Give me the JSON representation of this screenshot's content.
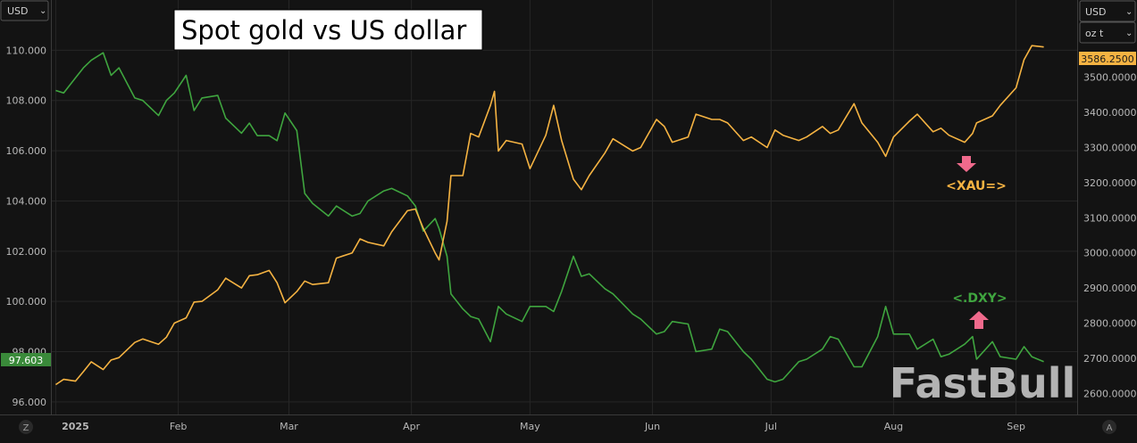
{
  "chart_data": {
    "type": "line",
    "title": "Spot gold vs US dollar",
    "left_axis": {
      "currency": "USD",
      "range": [
        95.5,
        112
      ],
      "ticks": [
        "110.000",
        "108.000",
        "106.000",
        "104.000",
        "102.000",
        "100.000",
        "98.000",
        "96.000"
      ]
    },
    "right_axis": {
      "currency": "USD",
      "unit": "oz t",
      "range": [
        2540,
        3720
      ],
      "ticks": [
        "3500.0000",
        "3400.0000",
        "3300.0000",
        "3200.0000",
        "3100.0000",
        "3000.0000",
        "2900.0000",
        "2800.0000",
        "2700.0000",
        "2600.0000"
      ]
    },
    "x_axis": {
      "range": [
        "2024-12-31",
        "2025-09-09"
      ],
      "ticks": [
        {
          "label": "2025",
          "date": "2025-01-01"
        },
        {
          "label": "Feb",
          "date": "2025-02-01"
        },
        {
          "label": "Mar",
          "date": "2025-03-01"
        },
        {
          "label": "Apr",
          "date": "2025-04-01"
        },
        {
          "label": "May",
          "date": "2025-05-01"
        },
        {
          "label": "Jun",
          "date": "2025-06-01"
        },
        {
          "label": "Jul",
          "date": "2025-07-01"
        },
        {
          "label": "Aug",
          "date": "2025-08-01"
        },
        {
          "label": "Sep",
          "date": "2025-09-01"
        }
      ]
    },
    "grid": true,
    "series": [
      {
        "name": "<.DXY>",
        "axis": "left",
        "color": "#3fa53f",
        "last_value_label": "97.603",
        "points": [
          [
            "2025-01-01",
            108.4
          ],
          [
            "2025-01-03",
            108.3
          ],
          [
            "2025-01-06",
            108.9
          ],
          [
            "2025-01-08",
            109.3
          ],
          [
            "2025-01-10",
            109.6
          ],
          [
            "2025-01-13",
            109.9
          ],
          [
            "2025-01-15",
            109.0
          ],
          [
            "2025-01-17",
            109.3
          ],
          [
            "2025-01-21",
            108.1
          ],
          [
            "2025-01-23",
            108.0
          ],
          [
            "2025-01-27",
            107.4
          ],
          [
            "2025-01-29",
            108.0
          ],
          [
            "2025-01-31",
            108.3
          ],
          [
            "2025-02-03",
            109.0
          ],
          [
            "2025-02-05",
            107.6
          ],
          [
            "2025-02-07",
            108.1
          ],
          [
            "2025-02-11",
            108.2
          ],
          [
            "2025-02-13",
            107.3
          ],
          [
            "2025-02-17",
            106.7
          ],
          [
            "2025-02-19",
            107.1
          ],
          [
            "2025-02-21",
            106.6
          ],
          [
            "2025-02-24",
            106.6
          ],
          [
            "2025-02-26",
            106.4
          ],
          [
            "2025-02-28",
            107.5
          ],
          [
            "2025-03-03",
            106.8
          ],
          [
            "2025-03-05",
            104.3
          ],
          [
            "2025-03-07",
            103.9
          ],
          [
            "2025-03-11",
            103.4
          ],
          [
            "2025-03-13",
            103.8
          ],
          [
            "2025-03-17",
            103.4
          ],
          [
            "2025-03-19",
            103.5
          ],
          [
            "2025-03-21",
            104.0
          ],
          [
            "2025-03-25",
            104.4
          ],
          [
            "2025-03-27",
            104.5
          ],
          [
            "2025-03-31",
            104.2
          ],
          [
            "2025-04-02",
            103.8
          ],
          [
            "2025-04-04",
            102.8
          ],
          [
            "2025-04-07",
            103.3
          ],
          [
            "2025-04-08",
            102.9
          ],
          [
            "2025-04-10",
            101.8
          ],
          [
            "2025-04-11",
            100.3
          ],
          [
            "2025-04-14",
            99.7
          ],
          [
            "2025-04-16",
            99.4
          ],
          [
            "2025-04-18",
            99.3
          ],
          [
            "2025-04-21",
            98.4
          ],
          [
            "2025-04-23",
            99.8
          ],
          [
            "2025-04-25",
            99.5
          ],
          [
            "2025-04-29",
            99.2
          ],
          [
            "2025-05-01",
            99.8
          ],
          [
            "2025-05-05",
            99.8
          ],
          [
            "2025-05-07",
            99.6
          ],
          [
            "2025-05-09",
            100.4
          ],
          [
            "2025-05-12",
            101.8
          ],
          [
            "2025-05-14",
            101.0
          ],
          [
            "2025-05-16",
            101.1
          ],
          [
            "2025-05-20",
            100.5
          ],
          [
            "2025-05-22",
            100.3
          ],
          [
            "2025-05-27",
            99.5
          ],
          [
            "2025-05-29",
            99.3
          ],
          [
            "2025-06-02",
            98.7
          ],
          [
            "2025-06-04",
            98.8
          ],
          [
            "2025-06-06",
            99.2
          ],
          [
            "2025-06-10",
            99.1
          ],
          [
            "2025-06-12",
            98.0
          ],
          [
            "2025-06-16",
            98.1
          ],
          [
            "2025-06-18",
            98.9
          ],
          [
            "2025-06-20",
            98.8
          ],
          [
            "2025-06-24",
            98.0
          ],
          [
            "2025-06-26",
            97.7
          ],
          [
            "2025-06-30",
            96.9
          ],
          [
            "2025-07-02",
            96.8
          ],
          [
            "2025-07-04",
            96.9
          ],
          [
            "2025-07-08",
            97.6
          ],
          [
            "2025-07-10",
            97.7
          ],
          [
            "2025-07-14",
            98.1
          ],
          [
            "2025-07-16",
            98.6
          ],
          [
            "2025-07-18",
            98.5
          ],
          [
            "2025-07-22",
            97.4
          ],
          [
            "2025-07-24",
            97.4
          ],
          [
            "2025-07-28",
            98.6
          ],
          [
            "2025-07-30",
            99.8
          ],
          [
            "2025-08-01",
            98.7
          ],
          [
            "2025-08-05",
            98.7
          ],
          [
            "2025-08-07",
            98.1
          ],
          [
            "2025-08-11",
            98.5
          ],
          [
            "2025-08-13",
            97.8
          ],
          [
            "2025-08-15",
            97.9
          ],
          [
            "2025-08-19",
            98.3
          ],
          [
            "2025-08-21",
            98.6
          ],
          [
            "2025-08-22",
            97.7
          ],
          [
            "2025-08-26",
            98.4
          ],
          [
            "2025-08-28",
            97.8
          ],
          [
            "2025-09-01",
            97.7
          ],
          [
            "2025-09-03",
            98.2
          ],
          [
            "2025-09-05",
            97.8
          ],
          [
            "2025-09-08",
            97.603
          ]
        ]
      },
      {
        "name": "<XAU=>",
        "axis": "right",
        "color": "#f5b342",
        "last_value_label": "3586.2500",
        "points": [
          [
            "2025-01-01",
            2625
          ],
          [
            "2025-01-03",
            2640
          ],
          [
            "2025-01-06",
            2635
          ],
          [
            "2025-01-08",
            2662
          ],
          [
            "2025-01-10",
            2690
          ],
          [
            "2025-01-13",
            2668
          ],
          [
            "2025-01-15",
            2695
          ],
          [
            "2025-01-17",
            2702
          ],
          [
            "2025-01-21",
            2745
          ],
          [
            "2025-01-23",
            2755
          ],
          [
            "2025-01-27",
            2740
          ],
          [
            "2025-01-29",
            2760
          ],
          [
            "2025-01-31",
            2800
          ],
          [
            "2025-02-03",
            2815
          ],
          [
            "2025-02-05",
            2860
          ],
          [
            "2025-02-07",
            2862
          ],
          [
            "2025-02-11",
            2895
          ],
          [
            "2025-02-13",
            2928
          ],
          [
            "2025-02-17",
            2900
          ],
          [
            "2025-02-19",
            2935
          ],
          [
            "2025-02-21",
            2938
          ],
          [
            "2025-02-24",
            2950
          ],
          [
            "2025-02-26",
            2915
          ],
          [
            "2025-02-28",
            2858
          ],
          [
            "2025-03-03",
            2890
          ],
          [
            "2025-03-05",
            2920
          ],
          [
            "2025-03-07",
            2910
          ],
          [
            "2025-03-11",
            2915
          ],
          [
            "2025-03-13",
            2985
          ],
          [
            "2025-03-17",
            3000
          ],
          [
            "2025-03-19",
            3040
          ],
          [
            "2025-03-21",
            3030
          ],
          [
            "2025-03-25",
            3020
          ],
          [
            "2025-03-27",
            3060
          ],
          [
            "2025-03-31",
            3120
          ],
          [
            "2025-04-02",
            3125
          ],
          [
            "2025-04-04",
            3070
          ],
          [
            "2025-04-07",
            3000
          ],
          [
            "2025-04-08",
            2980
          ],
          [
            "2025-04-10",
            3090
          ],
          [
            "2025-04-11",
            3220
          ],
          [
            "2025-04-14",
            3220
          ],
          [
            "2025-04-16",
            3340
          ],
          [
            "2025-04-18",
            3330
          ],
          [
            "2025-04-21",
            3420
          ],
          [
            "2025-04-22",
            3460
          ],
          [
            "2025-04-23",
            3290
          ],
          [
            "2025-04-25",
            3320
          ],
          [
            "2025-04-29",
            3310
          ],
          [
            "2025-05-01",
            3240
          ],
          [
            "2025-05-05",
            3335
          ],
          [
            "2025-05-07",
            3420
          ],
          [
            "2025-05-09",
            3320
          ],
          [
            "2025-05-12",
            3210
          ],
          [
            "2025-05-14",
            3180
          ],
          [
            "2025-05-16",
            3220
          ],
          [
            "2025-05-20",
            3285
          ],
          [
            "2025-05-22",
            3325
          ],
          [
            "2025-05-27",
            3290
          ],
          [
            "2025-05-29",
            3300
          ],
          [
            "2025-06-02",
            3380
          ],
          [
            "2025-06-04",
            3360
          ],
          [
            "2025-06-06",
            3315
          ],
          [
            "2025-06-10",
            3330
          ],
          [
            "2025-06-12",
            3395
          ],
          [
            "2025-06-16",
            3380
          ],
          [
            "2025-06-18",
            3380
          ],
          [
            "2025-06-20",
            3370
          ],
          [
            "2025-06-24",
            3320
          ],
          [
            "2025-06-26",
            3330
          ],
          [
            "2025-06-30",
            3300
          ],
          [
            "2025-07-02",
            3350
          ],
          [
            "2025-07-04",
            3335
          ],
          [
            "2025-07-08",
            3320
          ],
          [
            "2025-07-10",
            3330
          ],
          [
            "2025-07-14",
            3360
          ],
          [
            "2025-07-16",
            3340
          ],
          [
            "2025-07-18",
            3350
          ],
          [
            "2025-07-22",
            3425
          ],
          [
            "2025-07-24",
            3370
          ],
          [
            "2025-07-28",
            3315
          ],
          [
            "2025-07-30",
            3275
          ],
          [
            "2025-08-01",
            3330
          ],
          [
            "2025-08-05",
            3375
          ],
          [
            "2025-08-07",
            3395
          ],
          [
            "2025-08-11",
            3345
          ],
          [
            "2025-08-13",
            3355
          ],
          [
            "2025-08-15",
            3335
          ],
          [
            "2025-08-19",
            3315
          ],
          [
            "2025-08-21",
            3340
          ],
          [
            "2025-08-22",
            3370
          ],
          [
            "2025-08-26",
            3390
          ],
          [
            "2025-08-28",
            3420
          ],
          [
            "2025-09-01",
            3470
          ],
          [
            "2025-09-03",
            3550
          ],
          [
            "2025-09-05",
            3590
          ],
          [
            "2025-09-08",
            3586.25
          ]
        ]
      }
    ],
    "annotations": [
      {
        "text": "<XAU=>",
        "color": "#f5b342",
        "arrow": "down",
        "arrow_color": "#f06a8c"
      },
      {
        "text": "<.DXY>",
        "color": "#3fa53f",
        "arrow": "up",
        "arrow_color": "#f06a8c"
      }
    ],
    "watermark": "FastBull"
  },
  "controls": {
    "left_currency": "USD",
    "right_currency": "USD",
    "right_unit": "oz t",
    "dropdown_glyph": "⌄",
    "left_bottom_button": "Z",
    "right_bottom_button": "A"
  }
}
